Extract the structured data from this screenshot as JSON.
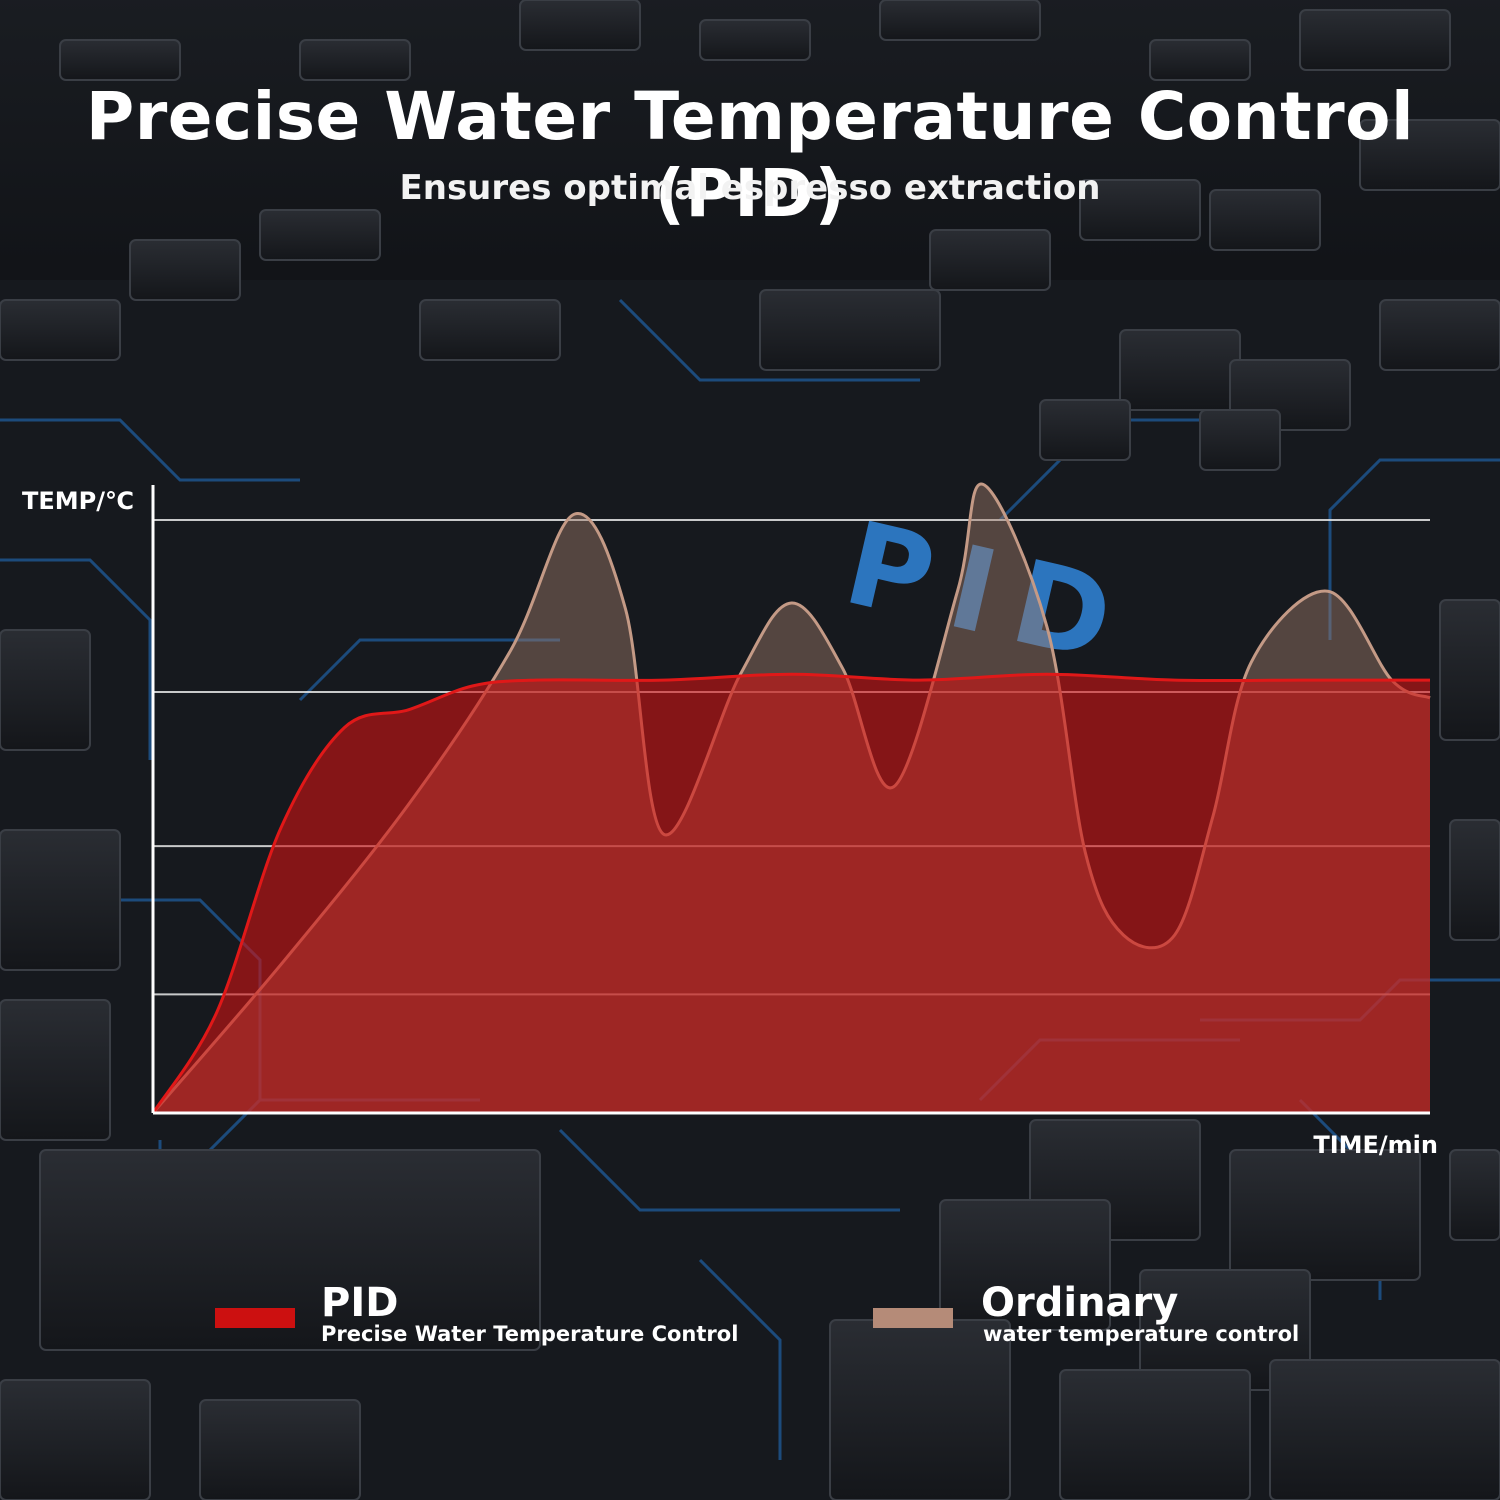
{
  "header": {
    "title": "Precise Water Temperature Control (PID)",
    "subtitle": "Ensures optimal espresso extraction"
  },
  "background": {
    "label": "PID"
  },
  "legend": [
    {
      "name": "PID",
      "description": "Precise Water Temperature Control",
      "color": "#cc1010"
    },
    {
      "name": "Ordinary",
      "description": "water temperature control",
      "color": "#b58b78"
    }
  ],
  "colors": {
    "background": "#15181d",
    "circuit": "#1e5b9a",
    "pid_fill": "#d01212",
    "ordinary_fill": "#a07c6a"
  },
  "chart_data": {
    "type": "area",
    "xlabel": "TIME/min",
    "ylabel": "TEMP/℃",
    "xlim": [
      0,
      100
    ],
    "ylim": [
      0,
      100
    ],
    "grid": true,
    "gridlines_y": [
      20,
      45,
      71,
      100
    ],
    "legend_position": "bottom",
    "series": [
      {
        "name": "PID",
        "x": [
          0,
          5,
          10,
          15,
          20,
          25,
          30,
          40,
          50,
          60,
          70,
          80,
          90,
          100
        ],
        "y": [
          0,
          17,
          48,
          65,
          68,
          72,
          73,
          73,
          74,
          73,
          74,
          73,
          73,
          73
        ]
      },
      {
        "name": "Ordinary",
        "x": [
          0,
          10,
          20,
          28,
          33,
          37,
          40,
          46,
          50,
          54,
          58,
          63,
          65,
          70,
          73,
          76,
          80,
          83,
          86,
          92,
          97,
          100
        ],
        "y": [
          0,
          25,
          52,
          78,
          101,
          85,
          47,
          74,
          86,
          75,
          55,
          88,
          106,
          82,
          44,
          30,
          30,
          50,
          76,
          88,
          73,
          70
        ]
      }
    ]
  }
}
